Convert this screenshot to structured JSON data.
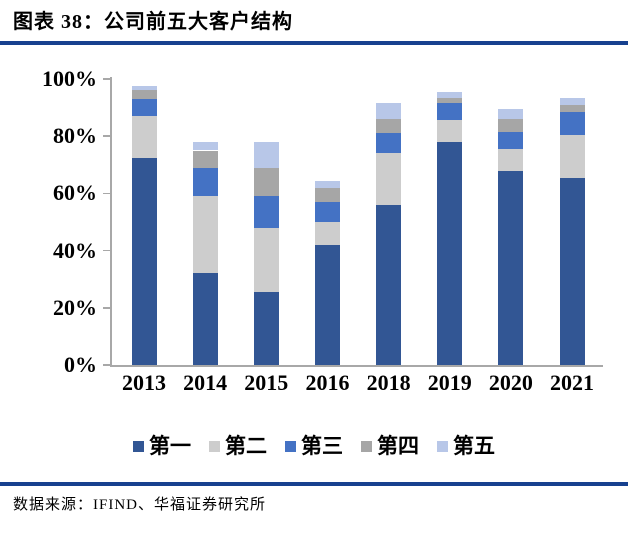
{
  "header": {
    "title": "图表 38：公司前五大客户结构"
  },
  "chart_data": {
    "type": "bar",
    "stacked": true,
    "title": "公司前五大客户结构",
    "categories": [
      "2013",
      "2014",
      "2015",
      "2016",
      "2018",
      "2019",
      "2020",
      "2021"
    ],
    "series": [
      {
        "name": "第一",
        "color": "#325694",
        "values": [
          72.5,
          32,
          25.5,
          42,
          56,
          78,
          68,
          65.5
        ]
      },
      {
        "name": "第二",
        "color": "#CDCDCD",
        "values": [
          14.5,
          27,
          22.5,
          8,
          18,
          7.5,
          7.5,
          15
        ]
      },
      {
        "name": "第三",
        "color": "#4472C4",
        "values": [
          6,
          10,
          11,
          7,
          7,
          6,
          6,
          8
        ]
      },
      {
        "name": "第四",
        "color": "#A6A6A6",
        "values": [
          3,
          6,
          10,
          5,
          5,
          2,
          4.5,
          2.5
        ]
      },
      {
        "name": "第五",
        "color": "#B8C7E8",
        "values": [
          1.5,
          3,
          9,
          2.5,
          5.5,
          2,
          3.5,
          2.5
        ]
      }
    ],
    "xlabel": "",
    "ylabel": "",
    "ylim": [
      0,
      100
    ],
    "y_ticks": [
      "0%",
      "20%",
      "40%",
      "60%",
      "80%",
      "100%"
    ],
    "grid": false,
    "legend_position": "bottom"
  },
  "footer": {
    "source": "数据来源：IFIND、华福证券研究所"
  },
  "theme": {
    "rule_color": "#17418F",
    "axis_color": "#A8A8A8"
  }
}
